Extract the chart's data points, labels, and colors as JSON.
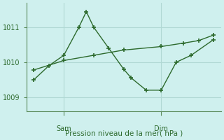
{
  "title": "Pression niveau de la mer( hPa )",
  "bg_color": "#cff0ee",
  "line_color": "#2d6a2d",
  "grid_color": "#b0d8d4",
  "axis_color": "#5a8a5a",
  "ytick_color": "#2d6a2d",
  "xtick_color": "#2d6a2d",
  "yticks": [
    1009,
    1010,
    1011
  ],
  "ylim": [
    1008.6,
    1011.7
  ],
  "xlim": [
    0,
    13
  ],
  "sam_x": 2.5,
  "dim_x": 9.0,
  "line1_x": [
    0.5,
    1.5,
    2.5,
    3.5,
    4.0,
    4.5,
    5.5,
    6.5,
    7.0,
    8.0,
    9.0,
    10.0,
    11.0,
    12.5
  ],
  "line1_y": [
    1009.5,
    1009.9,
    1010.2,
    1011.0,
    1011.45,
    1011.0,
    1010.4,
    1009.8,
    1009.55,
    1009.2,
    1009.2,
    1010.0,
    1010.2,
    1010.65
  ],
  "line2_x": [
    0.5,
    2.5,
    4.5,
    6.5,
    9.0,
    10.5,
    11.5,
    12.5
  ],
  "line2_y": [
    1009.78,
    1010.05,
    1010.2,
    1010.35,
    1010.45,
    1010.55,
    1010.62,
    1010.78
  ]
}
